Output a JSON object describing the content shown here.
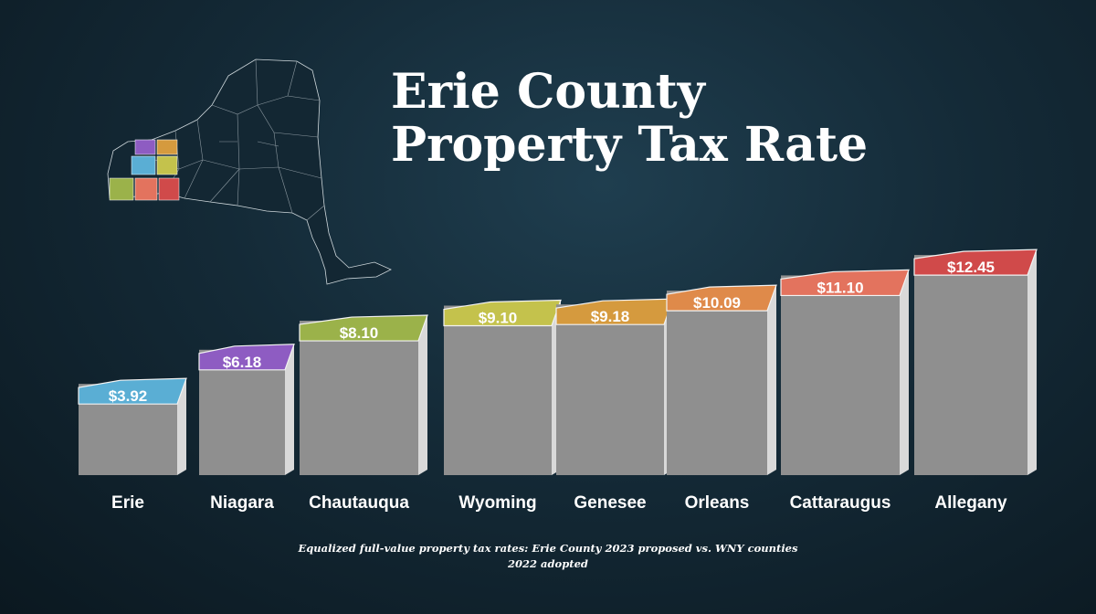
{
  "title": {
    "line1": "Erie County",
    "line2": "Property Tax Rate"
  },
  "caption": {
    "line1": "Equalized full-value property tax rates: Erie County 2023 proposed vs. WNY counties",
    "line2": "2022 adopted"
  },
  "chart_data": {
    "type": "bar",
    "categories": [
      "Erie",
      "Niagara",
      "Chautauqua",
      "Wyoming",
      "Genesee",
      "Orleans",
      "Cattaraugus",
      "Allegany"
    ],
    "values": [
      3.92,
      6.18,
      8.1,
      9.1,
      9.18,
      10.09,
      11.1,
      12.45
    ],
    "value_labels": [
      "$3.92",
      "$6.18",
      "$8.10",
      "$9.10",
      "$9.18",
      "$10.09",
      "$11.10",
      "$12.45"
    ],
    "colors": [
      "#5aaed4",
      "#8e5cc2",
      "#9bb24a",
      "#c4c24c",
      "#d59a3e",
      "#df8a4a",
      "#e3735e",
      "#d04a4a"
    ],
    "ylim": [
      0,
      13
    ],
    "grid": false,
    "legend": "none"
  },
  "map": {
    "icon": "new-york-state-map-icon",
    "highlight_colors": [
      "#8e5cc2",
      "#d59a3e",
      "#5aaed4",
      "#c4c24c",
      "#9bb24a",
      "#e3735e",
      "#d04a4a",
      "#df8a4a"
    ]
  }
}
